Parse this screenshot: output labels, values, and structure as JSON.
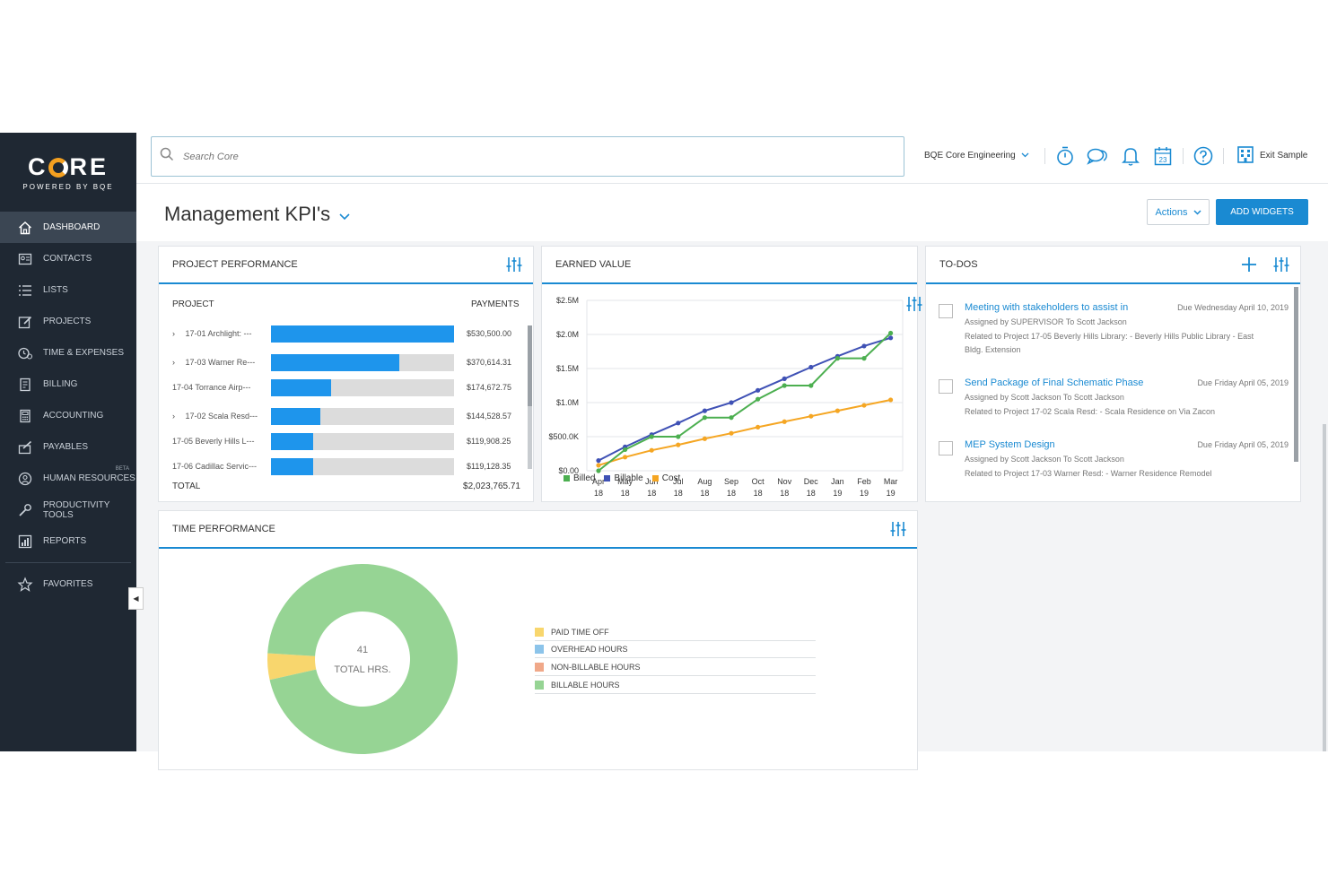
{
  "brand": {
    "logo_left": "C",
    "logo_right": "RE",
    "tagline": "POWERED BY BQE"
  },
  "sidebar": {
    "items": [
      {
        "label": "DASHBOARD",
        "icon": "home-icon",
        "active": true
      },
      {
        "label": "CONTACTS",
        "icon": "contacts-icon"
      },
      {
        "label": "LISTS",
        "icon": "list-icon"
      },
      {
        "label": "PROJECTS",
        "icon": "projects-icon"
      },
      {
        "label": "TIME & EXPENSES",
        "icon": "time-expenses-icon"
      },
      {
        "label": "BILLING",
        "icon": "billing-icon"
      },
      {
        "label": "ACCOUNTING",
        "icon": "calculator-icon"
      },
      {
        "label": "PAYABLES",
        "icon": "payables-icon"
      },
      {
        "label": "HUMAN RESOURCES",
        "icon": "human-resources-icon",
        "badge": "BETA"
      },
      {
        "label": "PRODUCTIVITY TOOLS",
        "icon": "wrench-icon"
      },
      {
        "label": "REPORTS",
        "icon": "reports-icon"
      }
    ],
    "favorites": {
      "label": "FAVORITES",
      "icon": "star-icon"
    }
  },
  "topbar": {
    "search_placeholder": "Search Core",
    "company": "BQE Core Engineering",
    "calendar_day": "23",
    "exit_label": "Exit Sample"
  },
  "page": {
    "title": "Management KPI's",
    "actions_label": "Actions",
    "add_widgets_label": "ADD WIDGETS"
  },
  "project_performance": {
    "title": "PROJECT PERFORMANCE",
    "col_project": "PROJECT",
    "col_payments": "PAYMENTS",
    "total_label": "TOTAL",
    "total_value": "$2,023,765.71",
    "rows": [
      {
        "label": "17-01 Archlight: ---",
        "expand": true,
        "amount": "$530,500.00",
        "fill": 1.0
      },
      {
        "label": "17-03 Warner Re---",
        "expand": true,
        "amount": "$370,614.31",
        "fill": 0.7
      },
      {
        "label": "17-04 Torrance Airp---",
        "expand": false,
        "amount": "$174,672.75",
        "fill": 0.33
      },
      {
        "label": "17-02 Scala Resd---",
        "expand": true,
        "amount": "$144,528.57",
        "fill": 0.27
      },
      {
        "label": "17-05 Beverly Hills L---",
        "expand": false,
        "amount": "$119,908.25",
        "fill": 0.23
      },
      {
        "label": "17-06 Cadillac Servic---",
        "expand": false,
        "amount": "$119,128.35",
        "fill": 0.23
      }
    ]
  },
  "earned_value": {
    "title": "EARNED VALUE",
    "colors": {
      "Billed": "#4caf50",
      "Billable": "#3f51b5",
      "Cost": "#f5a623"
    }
  },
  "chart_data": {
    "type": "line",
    "x": [
      "Apr 18",
      "May 18",
      "Jun 18",
      "Jul 18",
      "Aug 18",
      "Sep 18",
      "Oct 18",
      "Nov 18",
      "Dec 18",
      "Jan 19",
      "Feb 19",
      "Mar 19"
    ],
    "x_top": [
      "Apr",
      "May",
      "Jun",
      "Jul",
      "Aug",
      "Sep",
      "Oct",
      "Nov",
      "Dec",
      "Jan",
      "Feb",
      "Mar"
    ],
    "x_bottom": [
      "18",
      "18",
      "18",
      "18",
      "18",
      "18",
      "18",
      "18",
      "18",
      "19",
      "19",
      "19"
    ],
    "yticks": [
      "$2.5M",
      "$2.0M",
      "$1.5M",
      "$1.0M",
      "$500.0K",
      "$0.00"
    ],
    "ylim": [
      0,
      2500000
    ],
    "series": [
      {
        "name": "Billed",
        "values": [
          0,
          310000,
          500000,
          500000,
          780000,
          780000,
          1050000,
          1250000,
          1250000,
          1650000,
          1650000,
          2020000
        ]
      },
      {
        "name": "Billable",
        "values": [
          150000,
          350000,
          530000,
          700000,
          880000,
          1000000,
          1180000,
          1350000,
          1520000,
          1680000,
          1830000,
          1950000
        ]
      },
      {
        "name": "Cost",
        "values": [
          80000,
          200000,
          300000,
          380000,
          470000,
          550000,
          640000,
          720000,
          800000,
          880000,
          960000,
          1040000
        ]
      }
    ],
    "grid": true,
    "legend": "bottom-left"
  },
  "todos": {
    "title": "TO-DOS",
    "items": [
      {
        "title": "Meeting with stakeholders to assist in",
        "due": "Due Wednesday April 10, 2019",
        "assigned": "Assigned by SUPERVISOR To Scott Jackson",
        "related1": "Related to Project 17-05 Beverly Hills Library: - Beverly Hills Public Library - East",
        "related2": "Bldg. Extension"
      },
      {
        "title": "Send Package of Final Schematic Phase",
        "due": "Due Friday April 05, 2019",
        "assigned": "Assigned by Scott Jackson To Scott Jackson",
        "related1": "Related to Project 17-02 Scala Resd: - Scala Residence on Via Zacon"
      },
      {
        "title": "MEP System Design",
        "due": "Due Friday April 05, 2019",
        "assigned": "Assigned by Scott Jackson To Scott Jackson",
        "related1": "Related to Project 17-03 Warner Resd: - Warner Residence Remodel"
      }
    ]
  },
  "time_performance": {
    "title": "TIME PERFORMANCE",
    "total_value": "41",
    "total_label": "TOTAL HRS.",
    "legend": [
      {
        "label": "PAID TIME OFF",
        "color": "#f8d66d"
      },
      {
        "label": "OVERHEAD HOURS",
        "color": "#8cc4ea"
      },
      {
        "label": "NON-BILLABLE HOURS",
        "color": "#f0a889"
      },
      {
        "label": "BILLABLE HOURS",
        "color": "#96d494"
      }
    ],
    "slices": [
      {
        "label": "BILLABLE HOURS",
        "share": 0.955
      },
      {
        "label": "PAID TIME OFF",
        "share": 0.045
      }
    ]
  }
}
